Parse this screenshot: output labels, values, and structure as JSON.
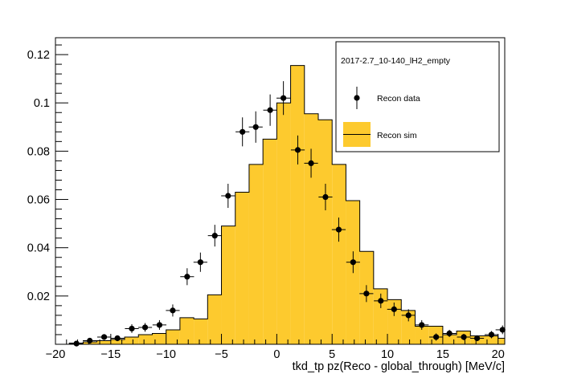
{
  "chart_data": {
    "type": "histogram",
    "xlabel": "tkd_tp pz(Reco - global_through) [MeV/c]",
    "ylabel": "",
    "xlim": [
      -20,
      20.6
    ],
    "ylim": [
      0,
      0.127
    ],
    "x_ticks": [
      -20,
      -15,
      -10,
      -5,
      0,
      5,
      10,
      15,
      20
    ],
    "y_ticks": [
      0.02,
      0.04,
      0.06,
      0.08,
      0.1,
      0.12
    ],
    "x_tick_labels": [
      "−20",
      "−15",
      "−10",
      "−5",
      "0",
      "5",
      "10",
      "15",
      "20"
    ],
    "y_tick_labels": [
      "0.02",
      "0.04",
      "0.06",
      "0.08",
      "0.1",
      "0.12"
    ],
    "legend": {
      "placement": "top-right",
      "header": "2017-2.7_10-140_lH2_empty",
      "entries": [
        "Recon data",
        "Recon sim"
      ]
    },
    "bin_width": 1.25,
    "sim": {
      "name": "Recon sim",
      "color": "#fdca2e",
      "bins": [
        [
          -20,
          0
        ],
        [
          -18.75,
          0.0005
        ],
        [
          -17.5,
          0.001
        ],
        [
          -16.25,
          0.0015
        ],
        [
          -15,
          0.002
        ],
        [
          -13.75,
          0.003
        ],
        [
          -12.5,
          0.004
        ],
        [
          -11.25,
          0.0045
        ],
        [
          -10,
          0.006
        ],
        [
          -8.75,
          0.011
        ],
        [
          -7.5,
          0.0105
        ],
        [
          -6.25,
          0.0205
        ],
        [
          -5,
          0.049
        ],
        [
          -3.75,
          0.063
        ],
        [
          -2.5,
          0.0745
        ],
        [
          -1.25,
          0.085
        ],
        [
          0,
          0.1
        ],
        [
          1.25,
          0.1155
        ],
        [
          2.5,
          0.0955
        ],
        [
          3.75,
          0.093
        ],
        [
          5,
          0.0745
        ],
        [
          6.25,
          0.0595
        ],
        [
          7.5,
          0.0385
        ],
        [
          8.75,
          0.023
        ],
        [
          10,
          0.0185
        ],
        [
          11.25,
          0.014
        ],
        [
          12.5,
          0.0075
        ],
        [
          13.75,
          0.0075
        ],
        [
          15,
          0.004
        ],
        [
          16.25,
          0.0055
        ],
        [
          17.5,
          0.0035
        ],
        [
          18.75,
          0.0035
        ],
        [
          20,
          0.0025
        ]
      ]
    },
    "data": {
      "name": "Recon data",
      "color": "#000000",
      "x_err": 0.625,
      "points": [
        {
          "x": -18.1,
          "y": 0.0003,
          "e": 0.0008
        },
        {
          "x": -16.9,
          "y": 0.0015,
          "e": 0.001
        },
        {
          "x": -15.6,
          "y": 0.003,
          "e": 0.0012
        },
        {
          "x": -14.4,
          "y": 0.0025,
          "e": 0.0012
        },
        {
          "x": -13.1,
          "y": 0.0065,
          "e": 0.0018
        },
        {
          "x": -11.9,
          "y": 0.007,
          "e": 0.0018
        },
        {
          "x": -10.6,
          "y": 0.008,
          "e": 0.002
        },
        {
          "x": -9.4,
          "y": 0.014,
          "e": 0.0025
        },
        {
          "x": -8.1,
          "y": 0.028,
          "e": 0.0035
        },
        {
          "x": -6.9,
          "y": 0.034,
          "e": 0.004
        },
        {
          "x": -5.6,
          "y": 0.045,
          "e": 0.0045
        },
        {
          "x": -4.4,
          "y": 0.0615,
          "e": 0.005
        },
        {
          "x": -3.1,
          "y": 0.088,
          "e": 0.006
        },
        {
          "x": -1.9,
          "y": 0.09,
          "e": 0.0065
        },
        {
          "x": -0.6,
          "y": 0.097,
          "e": 0.0065
        },
        {
          "x": 0.6,
          "y": 0.102,
          "e": 0.007
        },
        {
          "x": 1.9,
          "y": 0.0805,
          "e": 0.006
        },
        {
          "x": 3.1,
          "y": 0.075,
          "e": 0.006
        },
        {
          "x": 4.4,
          "y": 0.061,
          "e": 0.0055
        },
        {
          "x": 5.6,
          "y": 0.0475,
          "e": 0.005
        },
        {
          "x": 6.9,
          "y": 0.034,
          "e": 0.0045
        },
        {
          "x": 8.1,
          "y": 0.021,
          "e": 0.0035
        },
        {
          "x": 9.4,
          "y": 0.018,
          "e": 0.003
        },
        {
          "x": 10.6,
          "y": 0.0145,
          "e": 0.0028
        },
        {
          "x": 11.9,
          "y": 0.012,
          "e": 0.0025
        },
        {
          "x": 13.1,
          "y": 0.008,
          "e": 0.002
        },
        {
          "x": 14.4,
          "y": 0.003,
          "e": 0.0015
        },
        {
          "x": 15.6,
          "y": 0.0045,
          "e": 0.0015
        },
        {
          "x": 16.9,
          "y": 0.003,
          "e": 0.0013
        },
        {
          "x": 18.1,
          "y": 0.0025,
          "e": 0.0012
        },
        {
          "x": 19.4,
          "y": 0.004,
          "e": 0.0015
        },
        {
          "x": 20.4,
          "y": 0.006,
          "e": 0.0018
        }
      ]
    }
  }
}
